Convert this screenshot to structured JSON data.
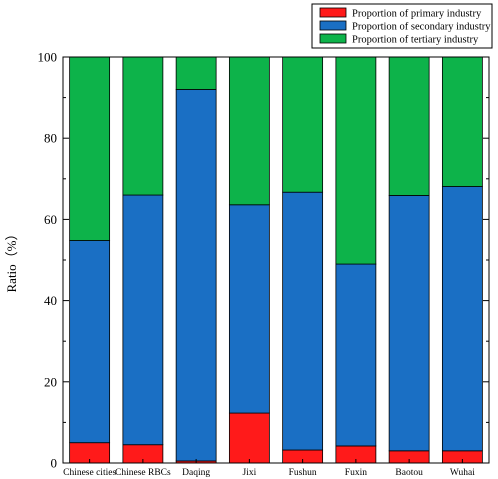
{
  "chart_data": {
    "type": "bar",
    "stacked": true,
    "categories": [
      "Chinese cities",
      "Chinese RBCs",
      "Daqing",
      "Jixi",
      "Fushun",
      "Fuxin",
      "Baotou",
      "Wuhai"
    ],
    "series": [
      {
        "name": "Proportion of primary industry",
        "color": "#ff1a1a",
        "values": [
          5.0,
          4.5,
          0.5,
          12.3,
          3.2,
          4.2,
          3.0,
          3.0
        ]
      },
      {
        "name": "Proportion of secondary industry",
        "color": "#1a6fc4",
        "values": [
          49.8,
          61.5,
          91.5,
          51.3,
          63.5,
          44.8,
          62.9,
          65.1
        ]
      },
      {
        "name": "Proportion of tertiary industry",
        "color": "#0db34a",
        "values": [
          45.2,
          34.0,
          8.0,
          36.4,
          33.3,
          51.0,
          34.1,
          31.9
        ]
      }
    ],
    "ylabel": "Ratio（%）",
    "xlabel": "",
    "ylim": [
      0,
      100
    ],
    "yticks": [
      0,
      20,
      40,
      60,
      80,
      100
    ],
    "legend_position": "top-right",
    "grid": false
  }
}
